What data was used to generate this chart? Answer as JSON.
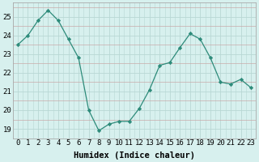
{
  "x": [
    0,
    1,
    2,
    3,
    4,
    5,
    6,
    7,
    8,
    9,
    10,
    11,
    12,
    13,
    14,
    15,
    16,
    17,
    18,
    19,
    20,
    21,
    22,
    23
  ],
  "y": [
    23.5,
    24.0,
    24.8,
    25.35,
    24.8,
    23.8,
    22.8,
    20.0,
    18.9,
    19.25,
    19.4,
    19.4,
    20.1,
    21.1,
    22.4,
    22.55,
    23.35,
    24.1,
    23.8,
    22.8,
    21.5,
    21.4,
    21.65,
    21.2
  ],
  "line_color": "#2d8b7a",
  "marker": "D",
  "marker_size": 2.2,
  "background_color": "#d7f0ee",
  "grid_color_major": "#b8d8d4",
  "grid_color_minor": "#c9aaaa",
  "xlabel": "Humidex (Indice chaleur)",
  "xlim": [
    -0.5,
    23.5
  ],
  "ylim": [
    18.5,
    25.75
  ],
  "yticks": [
    19,
    20,
    21,
    22,
    23,
    24,
    25
  ],
  "xticks": [
    0,
    1,
    2,
    3,
    4,
    5,
    6,
    7,
    8,
    9,
    10,
    11,
    12,
    13,
    14,
    15,
    16,
    17,
    18,
    19,
    20,
    21,
    22,
    23
  ],
  "xtick_labels": [
    "0",
    "1",
    "2",
    "3",
    "4",
    "5",
    "6",
    "7",
    "8",
    "9",
    "10",
    "11",
    "12",
    "13",
    "14",
    "15",
    "16",
    "17",
    "18",
    "19",
    "20",
    "21",
    "22",
    "23"
  ],
  "xlabel_fontsize": 7.5,
  "tick_fontsize": 6.5,
  "spine_color": "#aaaaaa",
  "linewidth": 0.9
}
